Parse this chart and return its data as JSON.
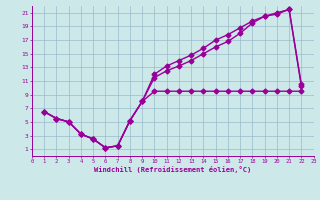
{
  "xlabel": "Windchill (Refroidissement éolien,°C)",
  "bg_color": "#cde8e8",
  "line_color": "#990099",
  "xlim": [
    0,
    23
  ],
  "ylim": [
    0,
    22
  ],
  "xticks": [
    0,
    1,
    2,
    3,
    4,
    5,
    6,
    7,
    8,
    9,
    10,
    11,
    12,
    13,
    14,
    15,
    16,
    17,
    18,
    19,
    20,
    21,
    22,
    23
  ],
  "yticks": [
    1,
    3,
    5,
    7,
    9,
    11,
    13,
    15,
    17,
    19,
    21
  ],
  "grid_color": "#99bbcc",
  "line1_x": [
    1,
    2,
    3,
    4,
    5,
    6,
    7,
    8,
    9,
    10,
    11,
    12,
    13,
    14,
    15,
    16,
    17,
    18,
    19,
    20,
    21,
    22
  ],
  "line1_y": [
    6.5,
    5.5,
    5.0,
    3.2,
    2.5,
    1.2,
    1.5,
    5.2,
    8.0,
    9.5,
    9.5,
    9.5,
    9.5,
    9.5,
    9.5,
    9.5,
    9.5,
    9.5,
    9.5,
    9.5,
    9.5,
    9.5
  ],
  "line2_x": [
    1,
    2,
    3,
    4,
    5,
    6,
    7,
    8,
    9,
    10,
    11,
    12,
    13,
    14,
    15,
    16,
    17,
    18,
    19,
    20,
    21,
    22
  ],
  "line2_y": [
    6.5,
    5.5,
    5.0,
    3.2,
    2.5,
    1.2,
    1.5,
    5.2,
    8.0,
    11.5,
    12.5,
    13.2,
    14.0,
    15.0,
    16.0,
    16.8,
    18.0,
    19.5,
    20.5,
    21.0,
    21.5,
    10.2
  ],
  "line3_x": [
    1,
    2,
    3,
    4,
    5,
    6,
    7,
    8,
    9,
    10,
    11,
    12,
    13,
    14,
    15,
    16,
    17,
    18,
    19,
    20,
    21,
    22
  ],
  "line3_y": [
    6.5,
    5.5,
    5.0,
    3.2,
    2.5,
    1.2,
    1.5,
    5.2,
    8.0,
    12.0,
    13.2,
    14.0,
    14.8,
    15.8,
    17.0,
    17.8,
    18.8,
    19.8,
    20.5,
    20.8,
    21.5,
    10.5
  ]
}
